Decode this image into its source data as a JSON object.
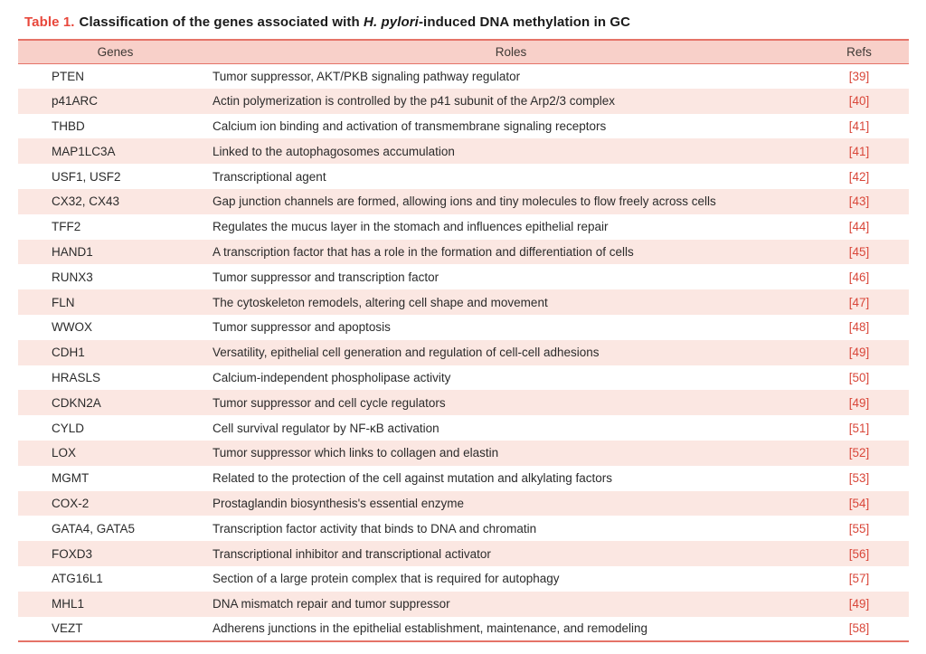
{
  "colors": {
    "accent_red": "#e8473b",
    "ref_red": "#d9473a",
    "header_bg": "#f8d0c9",
    "row_alt_bg": "#fbe7e2",
    "rule_red": "#e57368",
    "body_text": "#2b2b2b"
  },
  "title": {
    "label": "Table 1.",
    "before": "Classification of the genes associated with ",
    "italic": "H. pylori",
    "after": "-induced DNA methylation in GC"
  },
  "columns": [
    "Genes",
    "Roles",
    "Refs"
  ],
  "rows": [
    {
      "gene": "PTEN",
      "role": "Tumor suppressor, AKT/PKB signaling pathway regulator",
      "ref": "[39]"
    },
    {
      "gene": "p41ARC",
      "role": "Actin polymerization is controlled by the p41 subunit of the Arp2/3 complex",
      "ref": "[40]"
    },
    {
      "gene": "THBD",
      "role": "Calcium ion binding and activation of transmembrane signaling receptors",
      "ref": "[41]"
    },
    {
      "gene": "MAP1LC3A",
      "role": "Linked to the autophagosomes accumulation",
      "ref": "[41]"
    },
    {
      "gene": "USF1, USF2",
      "role": "Transcriptional agent",
      "ref": "[42]"
    },
    {
      "gene": "CX32, CX43",
      "role": "Gap junction channels are formed, allowing ions and tiny molecules to flow freely across cells",
      "ref": "[43]"
    },
    {
      "gene": "TFF2",
      "role": "Regulates the mucus layer in the stomach and influences epithelial repair",
      "ref": "[44]"
    },
    {
      "gene": "HAND1",
      "role": "A transcription factor that has a role in the formation and differentiation of cells",
      "ref": "[45]"
    },
    {
      "gene": "RUNX3",
      "role": "Tumor suppressor and transcription factor",
      "ref": "[46]"
    },
    {
      "gene": "FLN",
      "role": "The cytoskeleton remodels, altering cell shape and movement",
      "ref": "[47]"
    },
    {
      "gene": "WWOX",
      "role": "Tumor suppressor and apoptosis",
      "ref": "[48]"
    },
    {
      "gene": "CDH1",
      "role": "Versatility, epithelial cell generation and regulation of cell-cell adhesions",
      "ref": "[49]"
    },
    {
      "gene": "HRASLS",
      "role": "Calcium-independent phospholipase activity",
      "ref": "[50]"
    },
    {
      "gene": "CDKN2A",
      "role": "Tumor suppressor and cell cycle regulators",
      "ref": "[49]"
    },
    {
      "gene": "CYLD",
      "role": "Cell survival regulator by NF-κB activation",
      "ref": "[51]"
    },
    {
      "gene": "LOX",
      "role": "Tumor suppressor which links to collagen and elastin",
      "ref": "[52]"
    },
    {
      "gene": "MGMT",
      "role": "Related to the protection of the cell against mutation and alkylating factors",
      "ref": "[53]"
    },
    {
      "gene": "COX-2",
      "role": "Prostaglandin biosynthesis's essential enzyme",
      "ref": "[54]"
    },
    {
      "gene": "GATA4, GATA5",
      "role": "Transcription factor activity that binds to DNA and chromatin",
      "ref": "[55]"
    },
    {
      "gene": "FOXD3",
      "role": "Transcriptional inhibitor and transcriptional activator",
      "ref": "[56]"
    },
    {
      "gene": "ATG16L1",
      "role": "Section of a large protein complex that is required for autophagy",
      "ref": "[57]"
    },
    {
      "gene": "MHL1",
      "role": "DNA mismatch repair and tumor suppressor",
      "ref": "[49]"
    },
    {
      "gene": "VEZT",
      "role": "Adherens junctions in the epithelial establishment, maintenance, and remodeling",
      "ref": "[58]"
    }
  ]
}
